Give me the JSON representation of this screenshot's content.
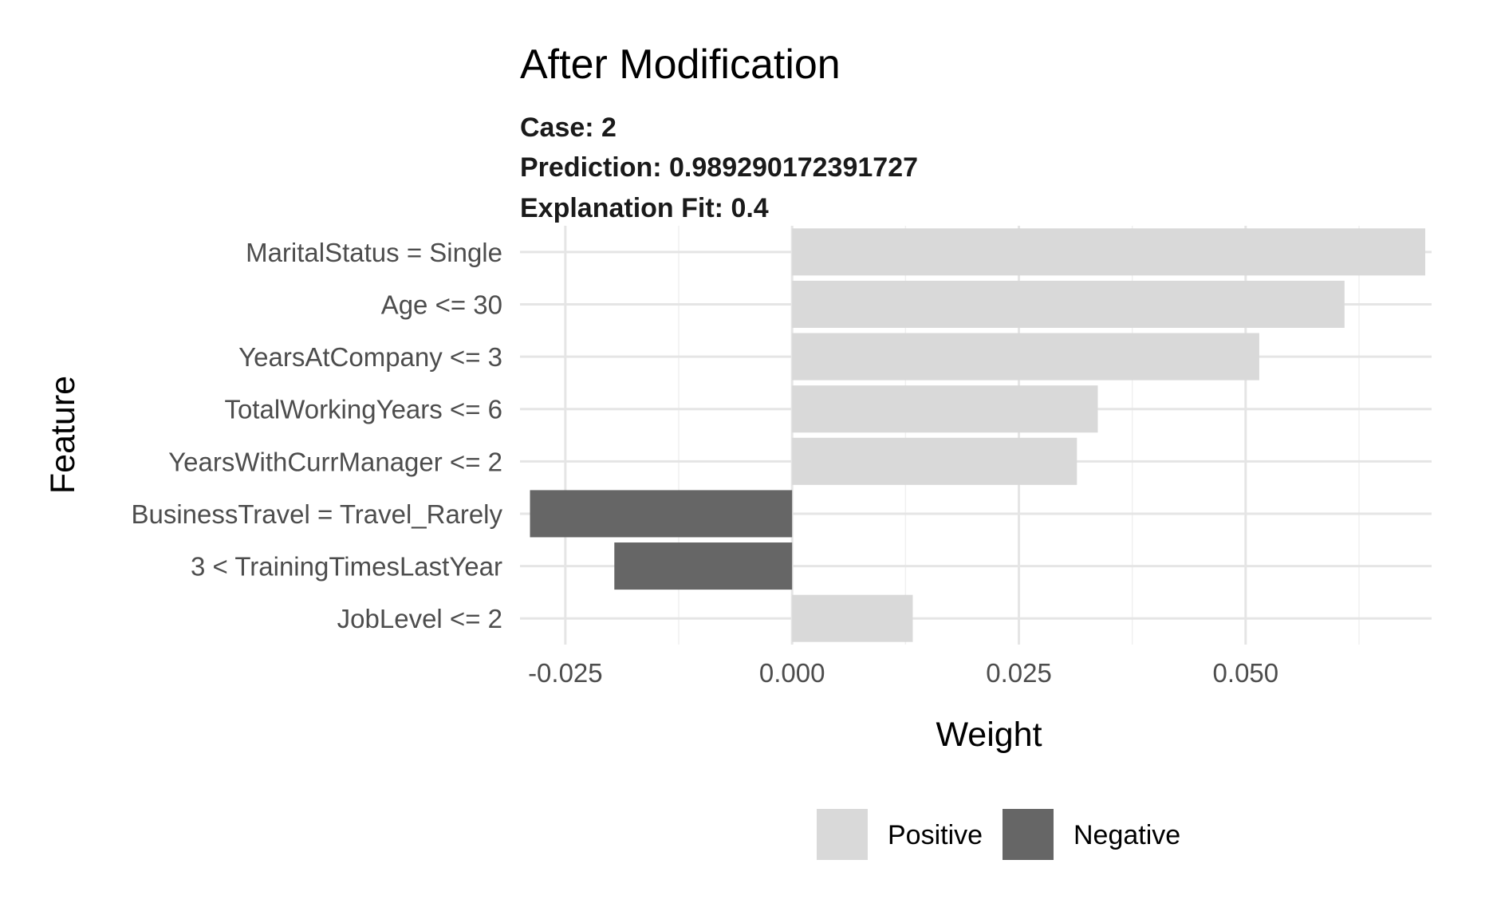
{
  "chart_data": {
    "type": "bar",
    "orientation": "horizontal",
    "title": "After Modification",
    "subtitle_lines": [
      "Case: 2",
      "Prediction: 0.989290172391727",
      "Explanation Fit: 0.4"
    ],
    "xlabel": "Weight",
    "ylabel": "Feature",
    "xlim": [
      -0.03,
      0.0705
    ],
    "x_ticks": [
      -0.025,
      0.0,
      0.025,
      0.05
    ],
    "x_tick_labels": [
      "-0.025",
      "0.000",
      "0.025",
      "0.050"
    ],
    "x_minor_ticks": [
      -0.0125,
      0.0125,
      0.0375,
      0.0625
    ],
    "grid": true,
    "categories": [
      "MaritalStatus = Single",
      "Age <= 30",
      "YearsAtCompany <= 3",
      "TotalWorkingYears <= 6",
      "YearsWithCurrManager <= 2",
      "BusinessTravel = Travel_Rarely",
      "3 < TrainingTimesLastYear",
      "JobLevel <= 2"
    ],
    "values": [
      0.0698,
      0.0609,
      0.0515,
      0.0337,
      0.0314,
      -0.0289,
      -0.0196,
      0.0133
    ],
    "sign": [
      "Positive",
      "Positive",
      "Positive",
      "Positive",
      "Positive",
      "Negative",
      "Negative",
      "Positive"
    ],
    "legend": {
      "position": "bottom",
      "entries": [
        {
          "name": "Positive",
          "color": "#d9d9d9"
        },
        {
          "name": "Negative",
          "color": "#666666"
        }
      ]
    },
    "colors": {
      "Positive": "#d9d9d9",
      "Negative": "#666666",
      "grid_major": "#e5e5e5",
      "grid_minor": "#f0f0f0"
    }
  }
}
